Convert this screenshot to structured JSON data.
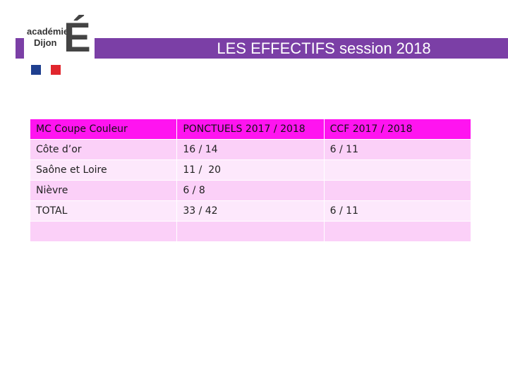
{
  "header": {
    "title": "LES EFFECTIFS session 2018",
    "logo": {
      "line1": "académie",
      "line2": "Dijon",
      "letter": "É"
    }
  },
  "table": {
    "columns": [
      "MC Coupe Couleur",
      "PONCTUELS 2017 / 2018",
      "CCF 2017 / 2018"
    ],
    "rows": [
      [
        "Côte d’or",
        "16 / 14",
        "6 / 11"
      ],
      [
        "Saône et Loire",
        "11 /  20",
        null
      ],
      [
        "Nièvre",
        "6 / 8",
        null
      ],
      [
        "TOTAL",
        "33 / 42",
        "6 / 11"
      ],
      [
        null,
        null,
        null
      ]
    ]
  }
}
